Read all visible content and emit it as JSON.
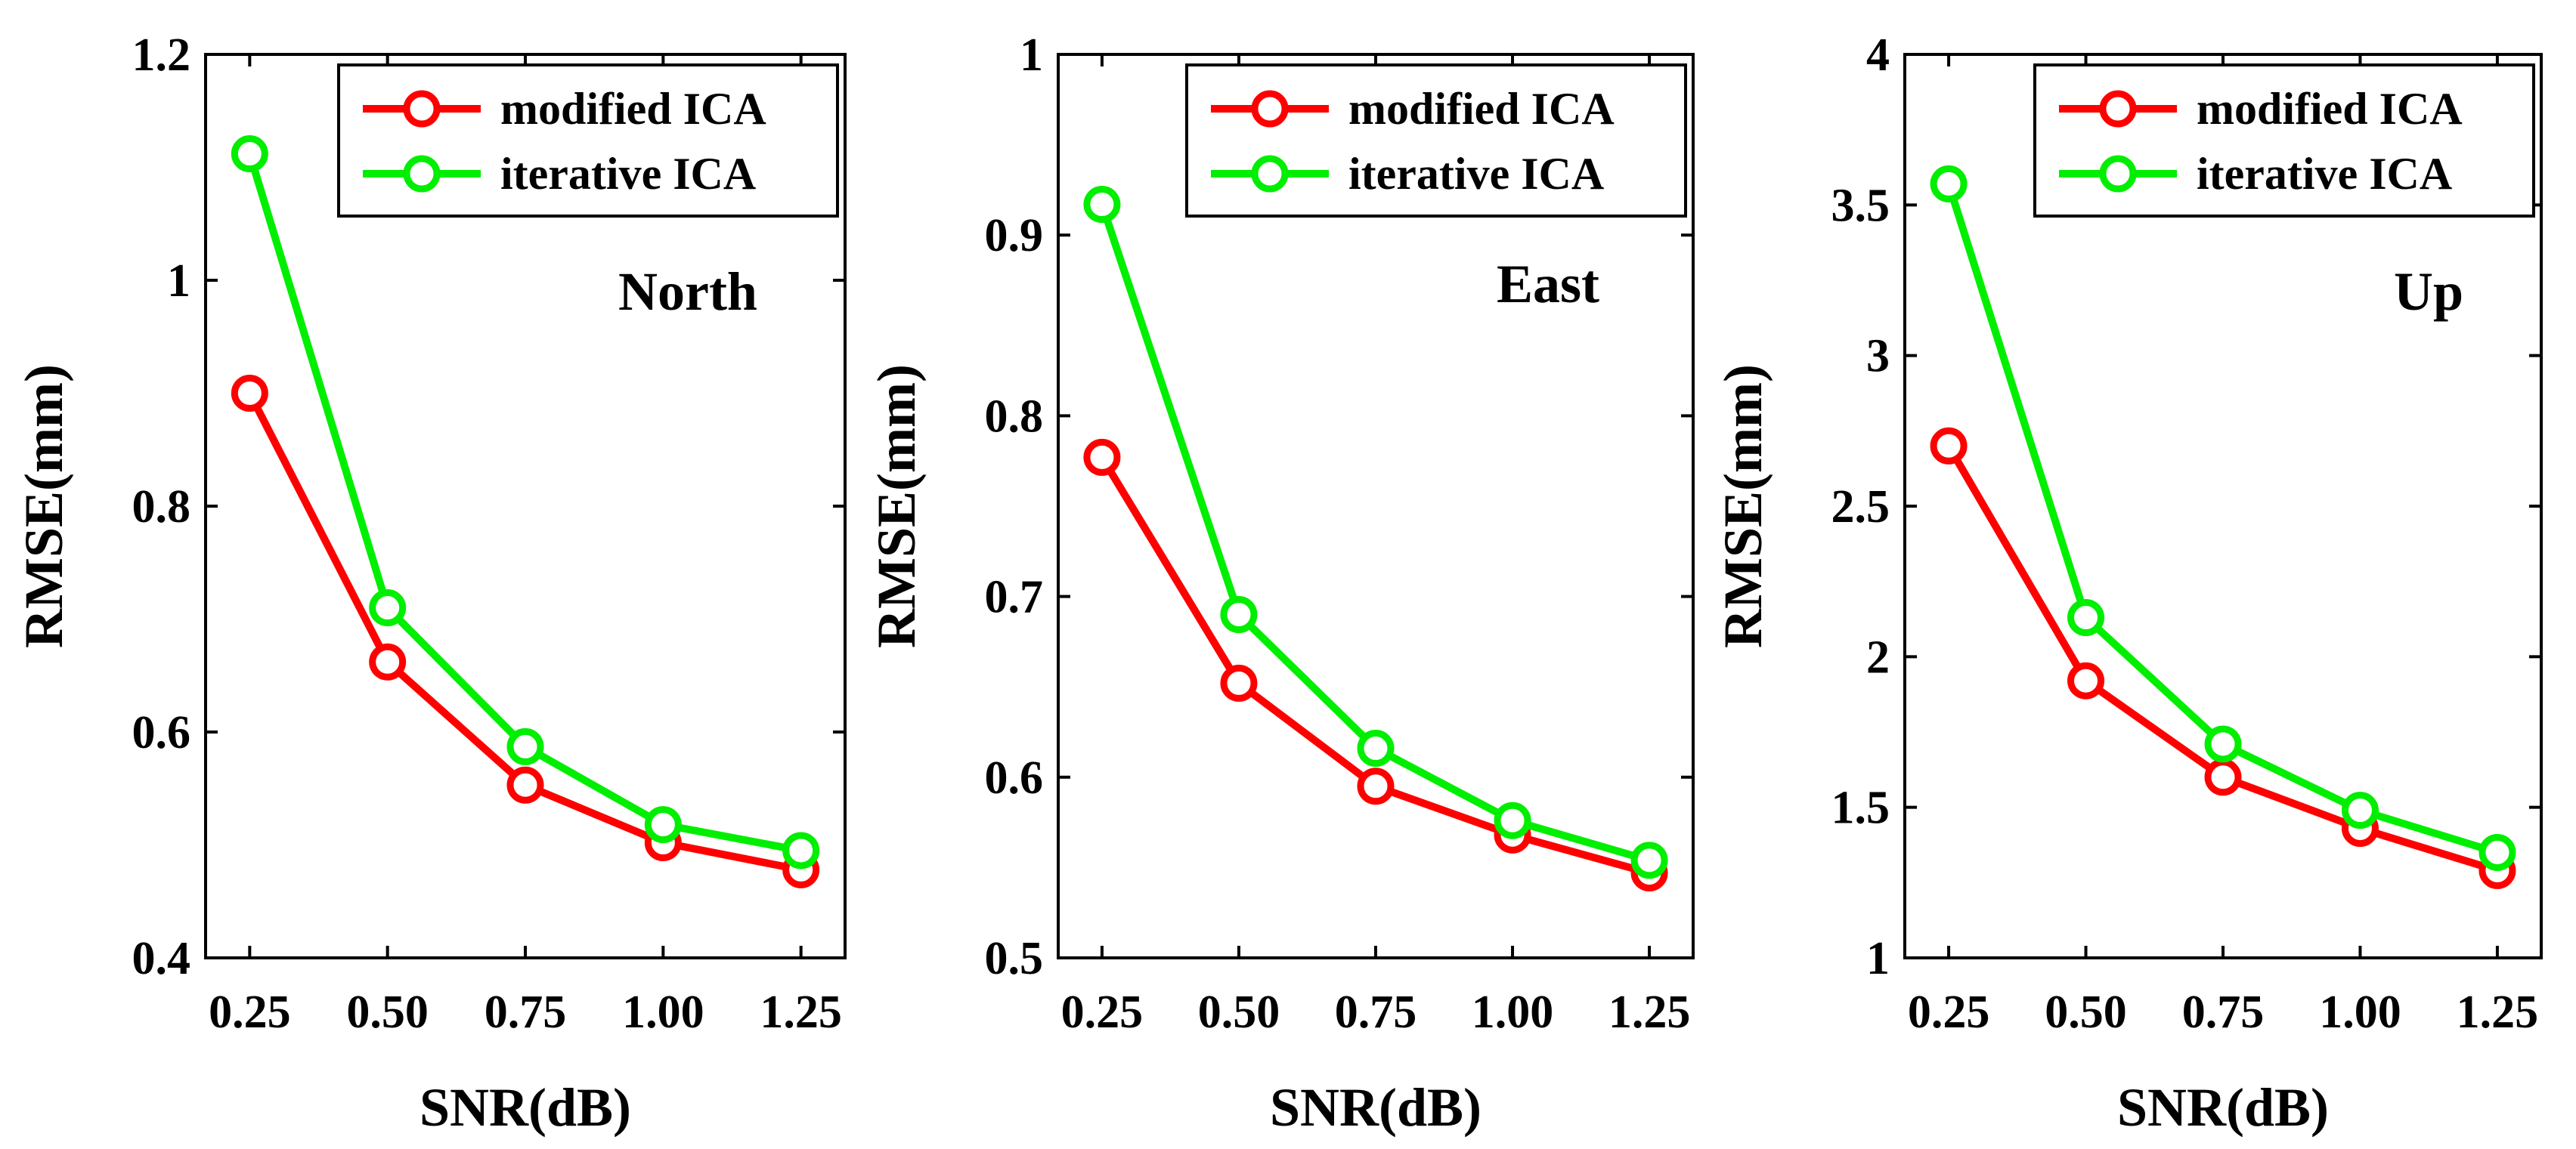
{
  "chart_data": [
    {
      "type": "line",
      "title": "North",
      "xlabel": "SNR(dB)",
      "ylabel": "RMSE(mm)",
      "categories": [
        "0.25",
        "0.50",
        "0.75",
        "1.00",
        "1.25"
      ],
      "x": [
        0.25,
        0.5,
        0.75,
        1.0,
        1.25
      ],
      "xlim": [
        0.17,
        1.33
      ],
      "ylim": [
        0.4,
        1.2
      ],
      "yticks": [
        0.4,
        0.6,
        0.8,
        1.0,
        1.2
      ],
      "ytick_labels": [
        "0.4",
        "0.6",
        "0.8",
        "1",
        "1.2"
      ],
      "legend_position": "top-right",
      "grid": false,
      "series": [
        {
          "name": "modified ICA",
          "color": "#ff0000",
          "values": [
            0.9,
            0.662,
            0.553,
            0.502,
            0.478
          ]
        },
        {
          "name": "iterative ICA",
          "color": "#00ee00",
          "values": [
            1.112,
            0.71,
            0.587,
            0.518,
            0.495
          ]
        }
      ]
    },
    {
      "type": "line",
      "title": "East",
      "xlabel": "SNR(dB)",
      "ylabel": "RMSE(mm)",
      "categories": [
        "0.25",
        "0.50",
        "0.75",
        "1.00",
        "1.25"
      ],
      "x": [
        0.25,
        0.5,
        0.75,
        1.0,
        1.25
      ],
      "xlim": [
        0.17,
        1.33
      ],
      "ylim": [
        0.5,
        1.0
      ],
      "yticks": [
        0.5,
        0.6,
        0.7,
        0.8,
        0.9,
        1.0
      ],
      "ytick_labels": [
        "0.5",
        "0.6",
        "0.7",
        "0.8",
        "0.9",
        "1"
      ],
      "legend_position": "top-right",
      "grid": false,
      "series": [
        {
          "name": "modified ICA",
          "color": "#ff0000",
          "values": [
            0.777,
            0.652,
            0.595,
            0.568,
            0.547
          ]
        },
        {
          "name": "iterative ICA",
          "color": "#00ee00",
          "values": [
            0.917,
            0.69,
            0.616,
            0.576,
            0.554
          ]
        }
      ]
    },
    {
      "type": "line",
      "title": "Up",
      "xlabel": "SNR(dB)",
      "ylabel": "RMSE(mm)",
      "categories": [
        "0.25",
        "0.50",
        "0.75",
        "1.00",
        "1.25"
      ],
      "x": [
        0.25,
        0.5,
        0.75,
        1.0,
        1.25
      ],
      "xlim": [
        0.17,
        1.33
      ],
      "ylim": [
        1,
        4
      ],
      "yticks": [
        1,
        1.5,
        2,
        2.5,
        3,
        3.5,
        4
      ],
      "ytick_labels": [
        "1",
        "1.5",
        "2",
        "2.5",
        "3",
        "3.5",
        "4"
      ],
      "legend_position": "top-right",
      "grid": false,
      "series": [
        {
          "name": "modified ICA",
          "color": "#ff0000",
          "values": [
            2.7,
            1.92,
            1.6,
            1.43,
            1.29
          ]
        },
        {
          "name": "iterative ICA",
          "color": "#00ee00",
          "values": [
            3.57,
            2.13,
            1.71,
            1.49,
            1.35
          ]
        }
      ]
    }
  ]
}
